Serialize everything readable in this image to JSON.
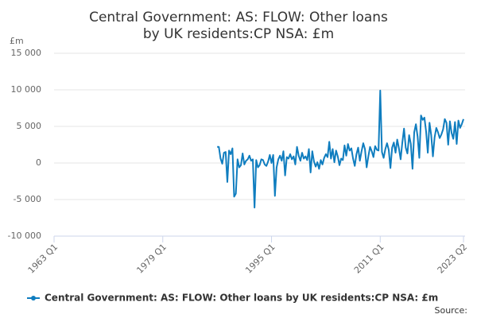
{
  "chart_data": {
    "type": "line",
    "title": "Central Government: AS: FLOW: Other loans by UK residents:CP NSA: £m",
    "y_unit": "£m",
    "source": "Source:",
    "x": [
      "1987 Q1",
      "1987 Q2",
      "1987 Q3",
      "1987 Q4",
      "1988 Q1",
      "1988 Q2",
      "1988 Q3",
      "1988 Q4",
      "1989 Q1",
      "1989 Q2",
      "1989 Q3",
      "1989 Q4",
      "1990 Q1",
      "1990 Q2",
      "1990 Q3",
      "1990 Q4",
      "1991 Q1",
      "1991 Q2",
      "1991 Q3",
      "1991 Q4",
      "1992 Q1",
      "1992 Q2",
      "1992 Q3",
      "1992 Q4",
      "1993 Q1",
      "1993 Q2",
      "1993 Q3",
      "1993 Q4",
      "1994 Q1",
      "1994 Q2",
      "1994 Q3",
      "1994 Q4",
      "1995 Q1",
      "1995 Q2",
      "1995 Q3",
      "1995 Q4",
      "1996 Q1",
      "1996 Q2",
      "1996 Q3",
      "1996 Q4",
      "1997 Q1",
      "1997 Q2",
      "1997 Q3",
      "1997 Q4",
      "1998 Q1",
      "1998 Q2",
      "1998 Q3",
      "1998 Q4",
      "1999 Q1",
      "1999 Q2",
      "1999 Q3",
      "1999 Q4",
      "2000 Q1",
      "2000 Q2",
      "2000 Q3",
      "2000 Q4",
      "2001 Q1",
      "2001 Q2",
      "2001 Q3",
      "2001 Q4",
      "2002 Q1",
      "2002 Q2",
      "2002 Q3",
      "2002 Q4",
      "2003 Q1",
      "2003 Q2",
      "2003 Q3",
      "2003 Q4",
      "2004 Q1",
      "2004 Q2",
      "2004 Q3",
      "2004 Q4",
      "2005 Q1",
      "2005 Q2",
      "2005 Q3",
      "2005 Q4",
      "2006 Q1",
      "2006 Q2",
      "2006 Q3",
      "2006 Q4",
      "2007 Q1",
      "2007 Q2",
      "2007 Q3",
      "2007 Q4",
      "2008 Q1",
      "2008 Q2",
      "2008 Q3",
      "2008 Q4",
      "2009 Q1",
      "2009 Q2",
      "2009 Q3",
      "2009 Q4",
      "2010 Q1",
      "2010 Q2",
      "2010 Q3",
      "2010 Q4",
      "2011 Q1",
      "2011 Q2",
      "2011 Q3",
      "2011 Q4",
      "2012 Q1",
      "2012 Q2",
      "2012 Q3",
      "2012 Q4",
      "2013 Q1",
      "2013 Q2",
      "2013 Q3",
      "2013 Q4",
      "2014 Q1",
      "2014 Q2",
      "2014 Q3",
      "2014 Q4",
      "2015 Q1",
      "2015 Q2",
      "2015 Q3",
      "2015 Q4",
      "2016 Q1",
      "2016 Q2",
      "2016 Q3",
      "2016 Q4",
      "2017 Q1",
      "2017 Q2",
      "2017 Q3",
      "2017 Q4",
      "2018 Q1",
      "2018 Q2",
      "2018 Q3",
      "2018 Q4",
      "2019 Q1",
      "2019 Q2",
      "2019 Q3",
      "2019 Q4",
      "2020 Q1",
      "2020 Q2",
      "2020 Q3",
      "2020 Q4",
      "2021 Q1",
      "2021 Q2",
      "2021 Q3",
      "2021 Q4",
      "2022 Q1",
      "2022 Q2",
      "2022 Q3",
      "2022 Q4",
      "2023 Q1",
      "2023 Q2"
    ],
    "series": [
      {
        "name": "Central Government: AS: FLOW: Other loans by UK residents:CP NSA: £m",
        "color": "#0f7dbf",
        "values": [
          2200,
          2200,
          600,
          -100,
          1400,
          1500,
          -2600,
          1700,
          1200,
          2000,
          -4600,
          -4200,
          500,
          -600,
          -300,
          1300,
          -200,
          300,
          500,
          1000,
          300,
          500,
          -6100,
          400,
          -600,
          -300,
          500,
          400,
          -200,
          -400,
          200,
          1100,
          0,
          1100,
          -4500,
          -600,
          500,
          1000,
          300,
          1600,
          -1700,
          800,
          600,
          1200,
          500,
          900,
          -200,
          2200,
          1000,
          300,
          1400,
          600,
          900,
          400,
          1900,
          -1300,
          1600,
          200,
          -500,
          100,
          -800,
          400,
          -200,
          700,
          1200,
          800,
          2900,
          600,
          1900,
          100,
          1700,
          900,
          -300,
          600,
          400,
          2400,
          1000,
          2600,
          1700,
          2000,
          600,
          -400,
          1200,
          2100,
          300,
          1600,
          2700,
          1900,
          -600,
          900,
          2200,
          1600,
          800,
          2300,
          1800,
          1700,
          9900,
          1500,
          700,
          1900,
          2700,
          1800,
          -700,
          2100,
          2800,
          1400,
          3200,
          2000,
          500,
          2800,
          4700,
          2100,
          1300,
          3800,
          2600,
          -800,
          4200,
          5300,
          3600,
          700,
          6500,
          5900,
          6200,
          4300,
          1400,
          5500,
          3800,
          900,
          3500,
          4800,
          4200,
          3400,
          3900,
          4600,
          6000,
          5500,
          2500,
          5700,
          4100,
          3300,
          5600,
          2600,
          5800,
          4800,
          5300,
          6000
        ]
      }
    ],
    "xlim": [
      "1963 Q1",
      "2023 Q2"
    ],
    "xticks": [
      "1963 Q1",
      "1979 Q1",
      "1995 Q1",
      "2011 Q1",
      "2023 Q2"
    ],
    "ylim": [
      -10000,
      15000
    ],
    "yticks": [
      {
        "value": -10000,
        "label": "-10 000"
      },
      {
        "value": -5000,
        "label": "-5 000"
      },
      0,
      {
        "value": 5000,
        "label": "5 000"
      },
      {
        "value": 10000,
        "label": "10 000"
      },
      {
        "value": 15000,
        "label": "15 000"
      }
    ],
    "grid": true
  }
}
